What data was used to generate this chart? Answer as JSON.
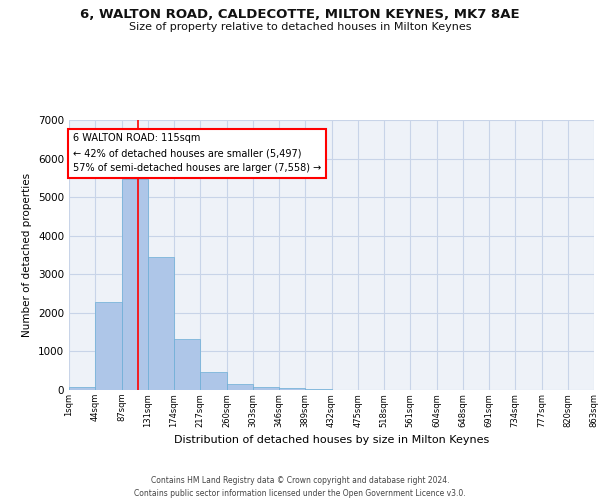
{
  "title": "6, WALTON ROAD, CALDECOTTE, MILTON KEYNES, MK7 8AE",
  "subtitle": "Size of property relative to detached houses in Milton Keynes",
  "xlabel": "Distribution of detached houses by size in Milton Keynes",
  "ylabel": "Number of detached properties",
  "bar_values": [
    80,
    2280,
    5470,
    3440,
    1310,
    460,
    155,
    90,
    55,
    30,
    10,
    5,
    3,
    2,
    1,
    1,
    0,
    0,
    0,
    0
  ],
  "x_labels": [
    "1sqm",
    "44sqm",
    "87sqm",
    "131sqm",
    "174sqm",
    "217sqm",
    "260sqm",
    "303sqm",
    "346sqm",
    "389sqm",
    "432sqm",
    "475sqm",
    "518sqm",
    "561sqm",
    "604sqm",
    "648sqm",
    "691sqm",
    "734sqm",
    "777sqm",
    "820sqm",
    "863sqm"
  ],
  "bar_color": "#aec6e8",
  "bar_edge_color": "#6baed6",
  "grid_color": "#c8d4e8",
  "background_color": "#eef2f8",
  "ylim": [
    0,
    7000
  ],
  "yticks": [
    0,
    1000,
    2000,
    3000,
    4000,
    5000,
    6000,
    7000
  ],
  "annotation_line1": "6 WALTON ROAD: 115sqm",
  "annotation_line2": "← 42% of detached houses are smaller (5,497)",
  "annotation_line3": "57% of semi-detached houses are larger (7,558) →",
  "footer1": "Contains HM Land Registry data © Crown copyright and database right 2024.",
  "footer2": "Contains public sector information licensed under the Open Government Licence v3.0."
}
